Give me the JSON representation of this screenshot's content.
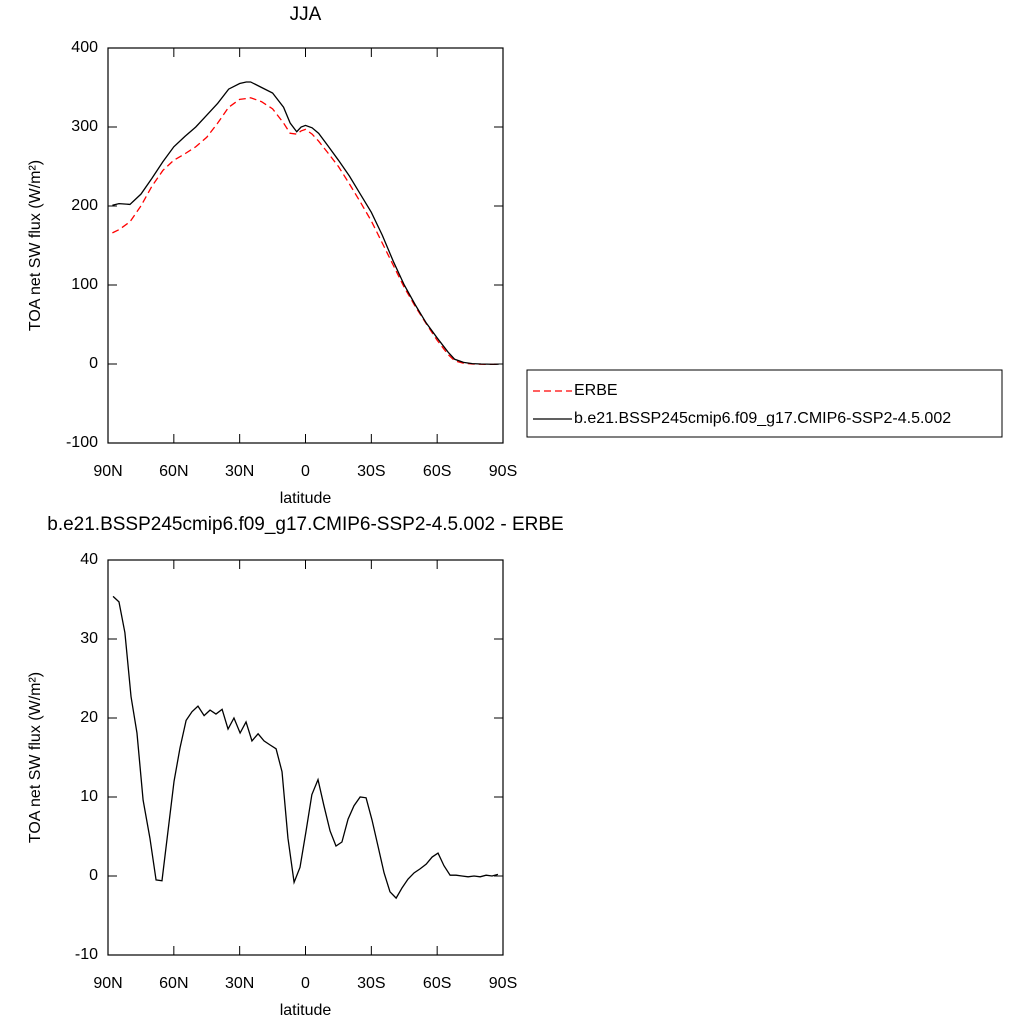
{
  "chart_data": [
    {
      "type": "line",
      "title": "JJA",
      "xlabel": "latitude",
      "ylabel": "TOA net SW flux (W/m²)",
      "x": [
        88,
        85,
        80,
        75,
        70,
        65,
        60,
        55,
        50,
        45,
        40,
        35,
        30,
        27,
        25,
        20,
        15,
        10,
        7,
        4,
        2,
        0,
        -3,
        -6,
        -10,
        -15,
        -20,
        -25,
        -30,
        -35,
        -40,
        -45,
        -50,
        -55,
        -60,
        -65,
        -68,
        -72,
        -76,
        -80,
        -85,
        -88
      ],
      "series": [
        {
          "name": "ERBE",
          "color": "#ff0000",
          "line_style": "dashed",
          "values": [
            166,
            170,
            180,
            200,
            225,
            245,
            258,
            266,
            275,
            287,
            305,
            325,
            335,
            336,
            337,
            332,
            323,
            305,
            292,
            291,
            295,
            297,
            291,
            282,
            268,
            250,
            228,
            205,
            181,
            153,
            125,
            97,
            73,
            51,
            30,
            12,
            4,
            1,
            0,
            -0.3,
            -0.5,
            -0.5
          ]
        },
        {
          "name": "b.e21.BSSP245cmip6.f09_g17.CMIP6-SSP2-4.5.002",
          "color": "#000000",
          "line_style": "solid",
          "values": [
            201,
            203,
            202,
            215,
            235,
            256,
            275,
            288,
            300,
            315,
            330,
            348,
            355,
            357,
            357,
            350,
            343,
            325,
            305,
            294,
            300,
            302,
            299,
            292,
            277,
            258,
            238,
            215,
            192,
            163,
            130,
            100,
            75,
            52,
            33,
            15,
            6,
            2,
            0.5,
            0,
            -0.3,
            -0.3
          ]
        }
      ],
      "xlim": [
        90,
        -90
      ],
      "xticks": [
        {
          "value": 90,
          "label": "90N"
        },
        {
          "value": 60,
          "label": "60N"
        },
        {
          "value": 30,
          "label": "30N"
        },
        0,
        {
          "value": -30,
          "label": "30S"
        },
        {
          "value": -60,
          "label": "60S"
        },
        {
          "value": -90,
          "label": "90S"
        }
      ],
      "ylim": [
        -100,
        400
      ],
      "yticks": [
        -100,
        0,
        100,
        200,
        300,
        400
      ],
      "legend": "right"
    },
    {
      "type": "line",
      "title": "b.e21.BSSP245cmip6.f09_g17.CMIP6-SSP2-4.5.002 - ERBE",
      "xlabel": "latitude",
      "ylabel": "TOA net SW flux (W/m²)",
      "x": [
        87.7,
        85,
        82.3,
        79.5,
        76.8,
        74,
        70.9,
        68.1,
        65.4,
        59.9,
        57.2,
        54.4,
        51.7,
        49,
        46.2,
        43.5,
        40.8,
        38,
        35.3,
        32.6,
        29.8,
        27.1,
        24.4,
        21.6,
        18.9,
        16.2,
        13.4,
        10.7,
        8,
        5.2,
        2.5,
        -0.2,
        -2.9,
        -5.7,
        -8.4,
        -11.2,
        -13.9,
        -16.6,
        -19.4,
        -22.1,
        -24.9,
        -27.6,
        -30.3,
        -33.1,
        -35.8,
        -38.5,
        -41.3,
        -44,
        -46.7,
        -49.5,
        -52.2,
        -55,
        -57.7,
        -60.4,
        -63.1,
        -65.9,
        -68.6,
        -71.3,
        -74.1,
        -76.8,
        -79.6,
        -82.3,
        -85,
        -87.7
      ],
      "color": "#000000",
      "values": [
        35.4,
        34.7,
        30.8,
        22.7,
        18.1,
        9.6,
        4.8,
        -0.5,
        -0.6,
        12.0,
        16.2,
        19.7,
        20.8,
        21.5,
        20.3,
        21.0,
        20.5,
        21.1,
        18.6,
        20.0,
        18.1,
        19.5,
        17.1,
        18.0,
        17.1,
        16.6,
        16.1,
        13.2,
        4.8,
        -0.8,
        1.1,
        5.6,
        10.3,
        12.2,
        8.9,
        5.7,
        3.8,
        4.3,
        7.2,
        8.9,
        10.0,
        9.9,
        7.1,
        3.7,
        0.4,
        -2.0,
        -2.8,
        -1.5,
        -0.4,
        0.4,
        0.9,
        1.5,
        2.4,
        2.9,
        1.3,
        0.1,
        0.1,
        0.0,
        -0.1,
        0.0,
        -0.1,
        0.1,
        0.0,
        0.2
      ],
      "xlim": [
        90,
        -90
      ],
      "xticks": [
        {
          "value": 90,
          "label": "90N"
        },
        {
          "value": 60,
          "label": "60N"
        },
        {
          "value": 30,
          "label": "30N"
        },
        0,
        {
          "value": -30,
          "label": "30S"
        },
        {
          "value": -60,
          "label": "60S"
        },
        {
          "value": -90,
          "label": "90S"
        }
      ],
      "ylim": [
        -10,
        40
      ],
      "yticks": [
        -10,
        0,
        10,
        20,
        30,
        40
      ]
    }
  ]
}
